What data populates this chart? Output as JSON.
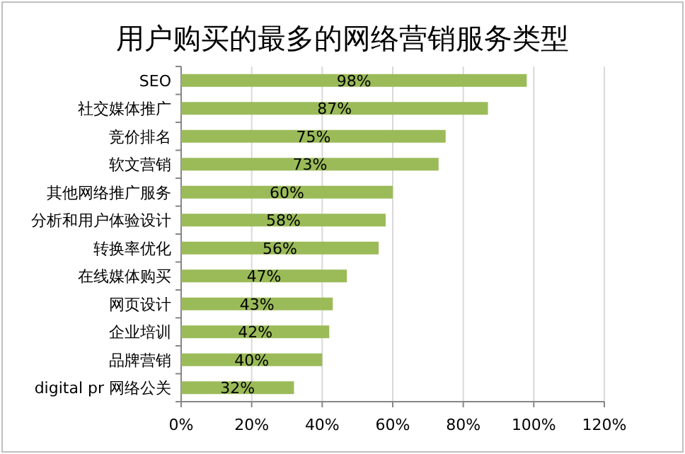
{
  "chart_data": {
    "type": "bar",
    "orientation": "horizontal",
    "title": "用户购买的最多的网络营销服务类型",
    "categories": [
      "SEO",
      "社交媒体推广",
      "竞价排名",
      "软文营销",
      "其他网络推广服务",
      "分析和用户体验设计",
      "转换率优化",
      "在线媒体购买",
      "网页设计",
      "企业培训",
      "品牌营销",
      "digital pr 网络公关"
    ],
    "values": [
      98,
      87,
      75,
      73,
      60,
      58,
      56,
      47,
      43,
      42,
      40,
      32
    ],
    "value_labels": [
      "98%",
      "87%",
      "75%",
      "73%",
      "60%",
      "58%",
      "56%",
      "47%",
      "43%",
      "42%",
      "40%",
      "32%"
    ],
    "color": "#9bbb59",
    "xlim": [
      0,
      120
    ],
    "xticks": [
      {
        "value": 0,
        "label": "0%"
      },
      {
        "value": 20,
        "label": "20%"
      },
      {
        "value": 40,
        "label": "40%"
      },
      {
        "value": 60,
        "label": "60%"
      },
      {
        "value": 80,
        "label": "80%"
      },
      {
        "value": 100,
        "label": "100%"
      },
      {
        "value": 120,
        "label": "120%"
      }
    ],
    "grid": "x"
  }
}
